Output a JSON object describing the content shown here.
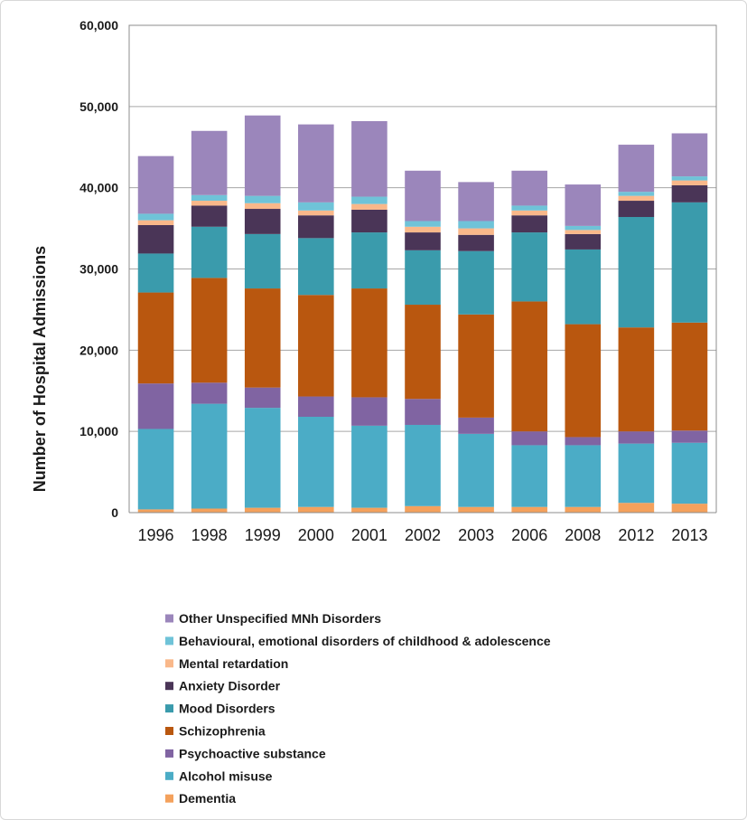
{
  "chart_data": {
    "type": "bar",
    "stacked": true,
    "title": "",
    "xlabel": "",
    "ylabel": "Number of Hospital Admissions",
    "ylim": [
      0,
      60000
    ],
    "yticks": [
      "0",
      "10,000",
      "20,000",
      "30,000",
      "40,000",
      "50,000",
      "60,000"
    ],
    "ytick_values": [
      0,
      10000,
      20000,
      30000,
      40000,
      50000,
      60000
    ],
    "grid": true,
    "legend_position": "bottom",
    "categories": [
      "1996",
      "1998",
      "1999",
      "2000",
      "2001",
      "2002",
      "2003",
      "2006",
      "2008",
      "2012",
      "2013"
    ],
    "series": [
      {
        "name": "Dementia",
        "color": "#f4a15c",
        "values": [
          400,
          500,
          600,
          700,
          600,
          800,
          700,
          700,
          700,
          1200,
          1100
        ]
      },
      {
        "name": "Alcohol misuse",
        "color": "#4bacc6",
        "values": [
          9900,
          12900,
          12300,
          11100,
          10100,
          10000,
          9000,
          7600,
          7600,
          7300,
          7500
        ]
      },
      {
        "name": "Psychoactive substance",
        "color": "#8064a2",
        "values": [
          5600,
          2600,
          2500,
          2500,
          3500,
          3200,
          2000,
          1700,
          1000,
          1500,
          1500
        ]
      },
      {
        "name": "Schizophrenia",
        "color": "#b9570f",
        "values": [
          11200,
          12900,
          12200,
          12500,
          13400,
          11600,
          12700,
          16000,
          13900,
          12800,
          13300
        ]
      },
      {
        "name": "Mood Disorders",
        "color": "#3a9bac",
        "values": [
          4800,
          6300,
          6700,
          7000,
          6900,
          6700,
          7800,
          8500,
          9200,
          13600,
          14800
        ]
      },
      {
        "name": "Anxiety Disorder",
        "color": "#4a3557",
        "values": [
          3500,
          2600,
          3100,
          2800,
          2800,
          2200,
          2000,
          2100,
          1900,
          2000,
          2100
        ]
      },
      {
        "name": "Mental retardation",
        "color": "#f9b88a",
        "values": [
          600,
          600,
          700,
          600,
          700,
          700,
          800,
          600,
          500,
          600,
          600
        ]
      },
      {
        "name": "Behavioural, emotional disorders of childhood & adolescence",
        "color": "#6fc3d8",
        "values": [
          800,
          700,
          900,
          1000,
          900,
          700,
          900,
          600,
          500,
          500,
          500
        ]
      },
      {
        "name": "Other Unspecified MNh Disorders",
        "color": "#9b86bb",
        "values": [
          7100,
          7900,
          9900,
          9600,
          9300,
          6200,
          4800,
          4300,
          5100,
          5800,
          5300
        ]
      }
    ],
    "legend_order": [
      "Other Unspecified MNh Disorders",
      "Behavioural, emotional disorders of childhood & adolescence",
      "Mental retardation",
      "Anxiety Disorder",
      "Mood Disorders",
      "Schizophrenia",
      "Psychoactive substance",
      "Alcohol misuse",
      "Dementia"
    ]
  }
}
